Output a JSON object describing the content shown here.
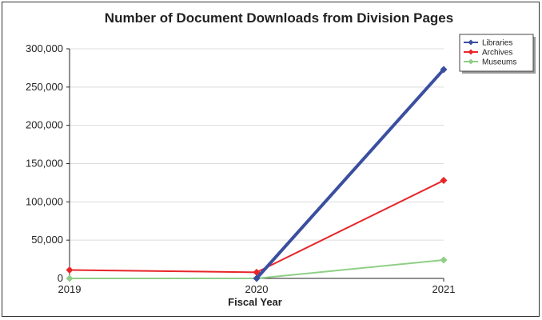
{
  "chart_data": {
    "type": "line",
    "title": "Number of Document Downloads from Division Pages",
    "xlabel": "Fiscal Year",
    "ylabel": "",
    "x": [
      2019,
      2020,
      2021
    ],
    "x_tick_labels": [
      "2019",
      "2020",
      "2021"
    ],
    "ylim": [
      0,
      300000
    ],
    "y_ticks": [
      0,
      50000,
      100000,
      150000,
      200000,
      250000,
      300000
    ],
    "y_tick_labels": [
      "0",
      "50,000",
      "100,000",
      "150,000",
      "200,000",
      "250,000",
      "300,000"
    ],
    "grid": true,
    "legend_position": "top-right",
    "series": [
      {
        "name": "Libraries",
        "color": "#3a4fa0",
        "values": [
          null,
          0,
          273000
        ]
      },
      {
        "name": "Archives",
        "color": "#e8262a",
        "values": [
          11000,
          8000,
          128000
        ]
      },
      {
        "name": "Museums",
        "color": "#8fcf86",
        "values": [
          0,
          0,
          24000
        ]
      }
    ]
  }
}
